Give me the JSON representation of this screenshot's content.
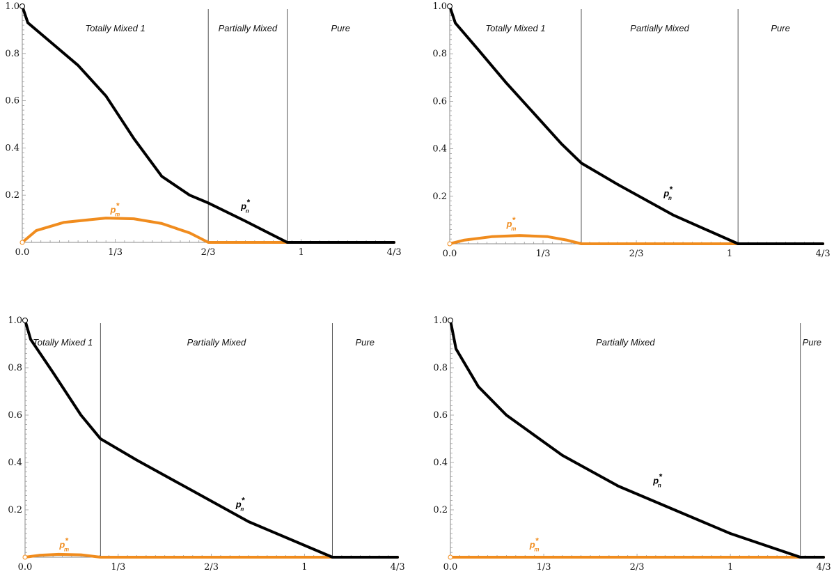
{
  "chart_data": [
    {
      "type": "line",
      "x_ticks": [
        "0.0",
        "1/3",
        "2/3",
        "1",
        "4/3"
      ],
      "y_ticks": [
        "1.0",
        "0.8",
        "0.6",
        "0.4",
        "0.2"
      ],
      "xlim": [
        0,
        1.333
      ],
      "ylim": [
        0,
        1.0
      ],
      "regions": [
        {
          "label": "Totally Mixed 1",
          "from": 0,
          "to": 0.667
        },
        {
          "label": "Partially Mixed",
          "from": 0.667,
          "to": 0.95
        },
        {
          "label": "Pure",
          "from": 0.95,
          "to": 1.333
        }
      ],
      "boundaries": [
        0.667,
        0.95
      ],
      "series": [
        {
          "name": "p_n*",
          "color": "#000000",
          "label_x": 0.8,
          "label_y": 0.14,
          "points": [
            [
              0,
              1.0
            ],
            [
              0.02,
              0.93
            ],
            [
              0.1,
              0.85
            ],
            [
              0.2,
              0.75
            ],
            [
              0.3,
              0.62
            ],
            [
              0.4,
              0.44
            ],
            [
              0.5,
              0.28
            ],
            [
              0.6,
              0.2
            ],
            [
              0.667,
              0.167
            ],
            [
              0.8,
              0.09
            ],
            [
              0.95,
              0.0
            ],
            [
              1.333,
              0.0
            ]
          ]
        },
        {
          "name": "p_m*",
          "color": "#f08c1e",
          "label_x": 0.333,
          "label_y": 0.125,
          "points": [
            [
              0,
              0.0
            ],
            [
              0.05,
              0.05
            ],
            [
              0.15,
              0.085
            ],
            [
              0.3,
              0.103
            ],
            [
              0.4,
              0.1
            ],
            [
              0.5,
              0.08
            ],
            [
              0.6,
              0.04
            ],
            [
              0.667,
              0.0
            ],
            [
              1.333,
              0.0
            ]
          ]
        }
      ]
    },
    {
      "type": "line",
      "x_ticks": [
        "0.0",
        "1/3",
        "2/3",
        "1",
        "4/3"
      ],
      "y_ticks": [
        "1.0",
        "0.8",
        "0.6",
        "0.4",
        "0.2"
      ],
      "xlim": [
        0,
        1.333
      ],
      "ylim": [
        0,
        1.0
      ],
      "regions": [
        {
          "label": "Totally Mixed 1",
          "from": 0,
          "to": 0.47
        },
        {
          "label": "Partially Mixed",
          "from": 0.47,
          "to": 1.03
        },
        {
          "label": "Pure",
          "from": 1.03,
          "to": 1.333
        }
      ],
      "boundaries": [
        0.47,
        1.03
      ],
      "series": [
        {
          "name": "p_n*",
          "color": "#000000",
          "label_x": 0.78,
          "label_y": 0.2,
          "points": [
            [
              0,
              1.0
            ],
            [
              0.02,
              0.93
            ],
            [
              0.1,
              0.82
            ],
            [
              0.2,
              0.68
            ],
            [
              0.3,
              0.55
            ],
            [
              0.4,
              0.42
            ],
            [
              0.47,
              0.34
            ],
            [
              0.6,
              0.25
            ],
            [
              0.8,
              0.12
            ],
            [
              1.03,
              0.0
            ],
            [
              1.333,
              0.0
            ]
          ]
        },
        {
          "name": "p_m*",
          "color": "#f08c1e",
          "label_x": 0.22,
          "label_y": 0.07,
          "points": [
            [
              0,
              0.0
            ],
            [
              0.05,
              0.015
            ],
            [
              0.15,
              0.03
            ],
            [
              0.25,
              0.035
            ],
            [
              0.35,
              0.03
            ],
            [
              0.42,
              0.015
            ],
            [
              0.47,
              0.0
            ],
            [
              1.333,
              0.0
            ]
          ]
        }
      ]
    },
    {
      "type": "line",
      "x_ticks": [
        "0.0",
        "1/3",
        "2/3",
        "1",
        "4/3"
      ],
      "y_ticks": [
        "1.0",
        "0.8",
        "0.6",
        "0.4",
        "0.2"
      ],
      "xlim": [
        0,
        1.333
      ],
      "ylim": [
        0,
        1.0
      ],
      "regions": [
        {
          "label": "Totally Mixed 1",
          "from": 0,
          "to": 0.27
        },
        {
          "label": "Partially Mixed",
          "from": 0.27,
          "to": 1.1
        },
        {
          "label": "Pure",
          "from": 1.1,
          "to": 1.333
        }
      ],
      "boundaries": [
        0.27,
        1.1
      ],
      "series": [
        {
          "name": "p_n*",
          "color": "#000000",
          "label_x": 0.77,
          "label_y": 0.21,
          "points": [
            [
              0,
              1.0
            ],
            [
              0.02,
              0.92
            ],
            [
              0.1,
              0.78
            ],
            [
              0.2,
              0.6
            ],
            [
              0.27,
              0.5
            ],
            [
              0.4,
              0.41
            ],
            [
              0.6,
              0.28
            ],
            [
              0.8,
              0.15
            ],
            [
              1.1,
              0.0
            ],
            [
              1.333,
              0.0
            ]
          ]
        },
        {
          "name": "p_m*",
          "color": "#f08c1e",
          "label_x": 0.14,
          "label_y": 0.04,
          "points": [
            [
              0,
              0.0
            ],
            [
              0.05,
              0.008
            ],
            [
              0.12,
              0.012
            ],
            [
              0.2,
              0.01
            ],
            [
              0.27,
              0.0
            ],
            [
              1.333,
              0.0
            ]
          ]
        }
      ]
    },
    {
      "type": "line",
      "x_ticks": [
        "0.0",
        "1/3",
        "2/3",
        "1",
        "4/3"
      ],
      "y_ticks": [
        "1.0",
        "0.8",
        "0.6",
        "0.4",
        "0.2"
      ],
      "xlim": [
        0,
        1.333
      ],
      "ylim": [
        0,
        1.0
      ],
      "regions": [
        {
          "label": "Partially Mixed",
          "from": 0,
          "to": 1.25
        },
        {
          "label": "Pure",
          "from": 1.25,
          "to": 1.333
        }
      ],
      "boundaries": [
        1.25
      ],
      "series": [
        {
          "name": "p_n*",
          "color": "#000000",
          "label_x": 0.74,
          "label_y": 0.31,
          "points": [
            [
              0,
              1.0
            ],
            [
              0.02,
              0.88
            ],
            [
              0.1,
              0.72
            ],
            [
              0.2,
              0.6
            ],
            [
              0.4,
              0.43
            ],
            [
              0.6,
              0.3
            ],
            [
              0.8,
              0.2
            ],
            [
              1.0,
              0.1
            ],
            [
              1.25,
              0.0
            ],
            [
              1.333,
              0.0
            ]
          ]
        },
        {
          "name": "p_m*",
          "color": "#f08c1e",
          "label_x": 0.3,
          "label_y": 0.04,
          "points": [
            [
              0,
              0.0
            ],
            [
              1.333,
              0.0
            ]
          ]
        }
      ]
    }
  ]
}
